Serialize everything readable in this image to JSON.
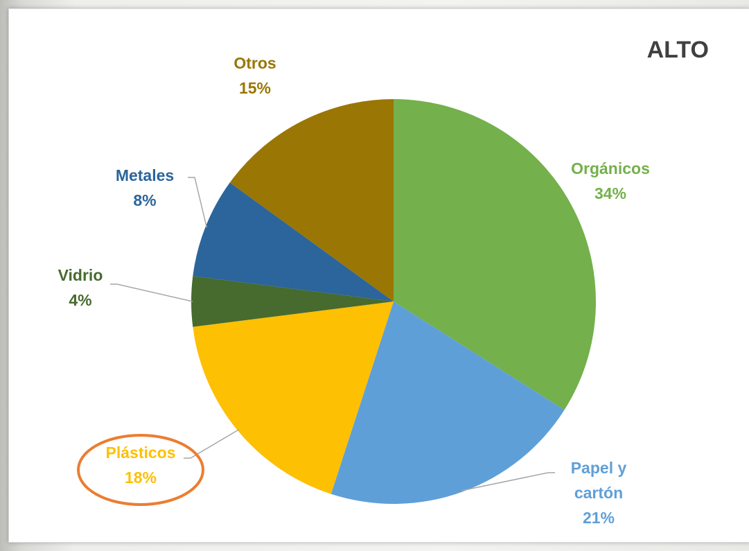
{
  "chart_data": {
    "type": "pie",
    "title": "ALTO",
    "slices": [
      {
        "name": "Orgánicos",
        "pct_label": "34%",
        "value": 34,
        "color": "#74b04b"
      },
      {
        "name": "Papel y cartón",
        "pct_label": "21%",
        "value": 21,
        "color": "#5f9fd8"
      },
      {
        "name": "Plásticos",
        "pct_label": "18%",
        "value": 18,
        "color": "#fdc003"
      },
      {
        "name": "Vidrio",
        "pct_label": "4%",
        "value": 4,
        "color": "#476a2e"
      },
      {
        "name": "Metales",
        "pct_label": "8%",
        "value": 8,
        "color": "#2b659c"
      },
      {
        "name": "Otros",
        "pct_label": "15%",
        "value": 15,
        "color": "#9a7604"
      }
    ],
    "label_colors": {
      "Orgánicos": "#74b04b",
      "Papel y cartón": "#5f9fd8",
      "Plásticos": "#fdc003",
      "Vidrio": "#476a2e",
      "Metales": "#2b659c",
      "Otros": "#9a7604"
    },
    "highlighted_slice": "Plásticos",
    "highlight_color": "#ec7d31"
  }
}
